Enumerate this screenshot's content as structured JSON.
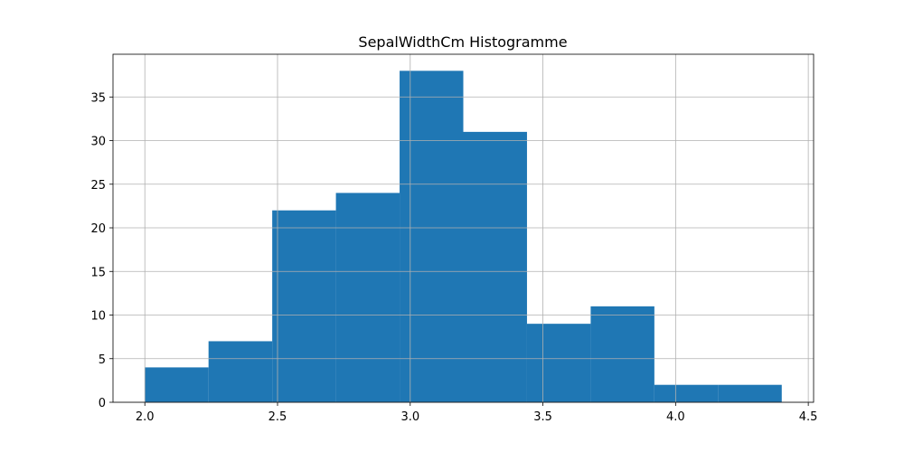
{
  "chart_data": {
    "type": "histogram",
    "title": "SepalWidthCm Histogramme",
    "bins": [
      2.0,
      2.24,
      2.48,
      2.72,
      2.96,
      3.2,
      3.44,
      3.68,
      3.92,
      4.16,
      4.4
    ],
    "values": [
      4,
      7,
      22,
      24,
      38,
      31,
      9,
      11,
      2,
      2
    ],
    "color": "#1f77b4",
    "xlim": [
      1.88,
      4.52
    ],
    "xticks": [
      {
        "value": 2,
        "label": "2.0"
      },
      2.5,
      {
        "value": 3,
        "label": "3.0"
      },
      3.5,
      {
        "value": 4,
        "label": "4.0"
      },
      4.5
    ],
    "ylim": [
      0,
      39.9
    ],
    "yticks": [
      0,
      5,
      10,
      15,
      20,
      25,
      30,
      35
    ],
    "grid": true
  }
}
